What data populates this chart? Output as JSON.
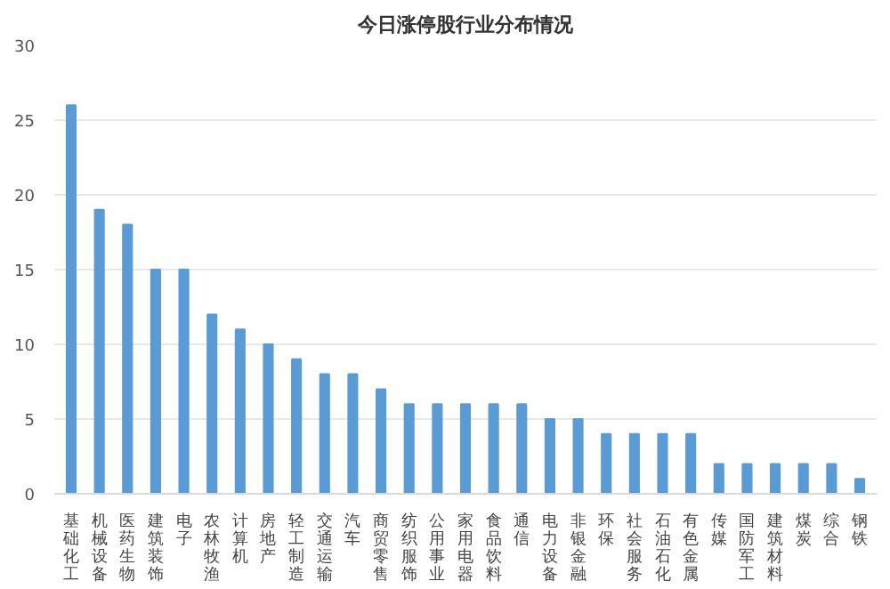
{
  "chart_data": {
    "type": "bar",
    "title": "今日涨停股行业分布情况",
    "categories": [
      "基础化工",
      "机械设备",
      "医药生物",
      "建筑装饰",
      "电子",
      "农林牧渔",
      "计算机",
      "房地产",
      "轻工制造",
      "交通运输",
      "汽车",
      "商贸零售",
      "纺织服饰",
      "公用事业",
      "家用电器",
      "食品饮料",
      "通信",
      "电力设备",
      "非银金融",
      "环保",
      "社会服务",
      "石油石化",
      "有色金属",
      "传媒",
      "国防军工",
      "建筑材料",
      "煤炭",
      "综合",
      "钢铁"
    ],
    "values": [
      26,
      19,
      18,
      15,
      15,
      12,
      11,
      10,
      9,
      8,
      8,
      7,
      6,
      6,
      6,
      6,
      6,
      5,
      5,
      4,
      4,
      4,
      4,
      2,
      2,
      2,
      2,
      2,
      1
    ],
    "color": "#5b9bd5",
    "ylim": [
      0,
      30
    ],
    "yticks": [
      0,
      5,
      10,
      15,
      20,
      25,
      30
    ],
    "grid": "y"
  }
}
